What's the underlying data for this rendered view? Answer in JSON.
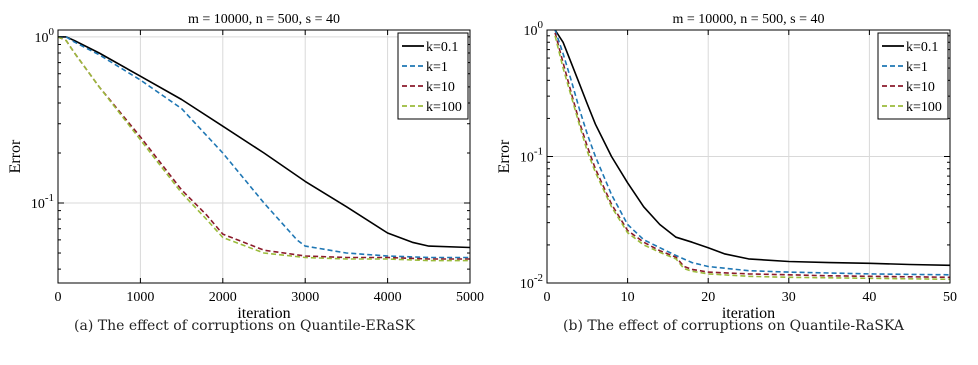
{
  "chart_data": [
    {
      "type": "line",
      "title": "m = 10000, n = 500, s = 40",
      "xlabel": "iteration",
      "ylabel": "Error",
      "xlim": [
        0,
        5000
      ],
      "ylim": [
        0.033,
        1.1
      ],
      "yscale": "log",
      "xticks": [
        0,
        1000,
        2000,
        3000,
        4000,
        5000
      ],
      "ytick_labels": [
        "10^0",
        "10^-1"
      ],
      "grid": true,
      "legend_position": "top-right",
      "caption": "(a) The effect of corruptions on Quantile-ERaSK",
      "series": [
        {
          "name": "k=0.1",
          "color": "#000000",
          "dash": "solid",
          "x": [
            0,
            100,
            200,
            500,
            1000,
            1500,
            2000,
            2500,
            3000,
            3500,
            4000,
            4300,
            4500,
            5000
          ],
          "y": [
            1.0,
            1.0,
            0.95,
            0.8,
            0.58,
            0.42,
            0.29,
            0.2,
            0.135,
            0.095,
            0.066,
            0.058,
            0.055,
            0.054
          ]
        },
        {
          "name": "k=1",
          "color": "#1f77b4",
          "dash": "dashed",
          "x": [
            0,
            100,
            200,
            500,
            1000,
            1500,
            2000,
            2500,
            2900,
            3000,
            3500,
            4000,
            4500,
            5000
          ],
          "y": [
            1.0,
            1.0,
            0.93,
            0.78,
            0.55,
            0.37,
            0.2,
            0.1,
            0.06,
            0.055,
            0.05,
            0.048,
            0.047,
            0.047
          ]
        },
        {
          "name": "k=10",
          "color": "#8b1a2b",
          "dash": "dashed",
          "x": [
            0,
            100,
            200,
            500,
            1000,
            1500,
            1800,
            2000,
            2500,
            3000,
            3500,
            4000,
            4500,
            5000
          ],
          "y": [
            1.0,
            0.95,
            0.8,
            0.5,
            0.25,
            0.12,
            0.085,
            0.065,
            0.052,
            0.048,
            0.047,
            0.047,
            0.046,
            0.046
          ]
        },
        {
          "name": "k=100",
          "color": "#9bbb3b",
          "dash": "dashed",
          "x": [
            0,
            100,
            200,
            500,
            1000,
            1500,
            1800,
            2000,
            2500,
            3000,
            3500,
            4000,
            4500,
            5000
          ],
          "y": [
            1.0,
            0.95,
            0.8,
            0.5,
            0.24,
            0.115,
            0.08,
            0.062,
            0.05,
            0.047,
            0.046,
            0.046,
            0.045,
            0.045
          ]
        }
      ]
    },
    {
      "type": "line",
      "title": "m = 10000, n = 500, s = 40",
      "xlabel": "iteration",
      "ylabel": "Error",
      "xlim": [
        0,
        50
      ],
      "ylim": [
        0.01,
        1.0
      ],
      "yscale": "log",
      "xticks": [
        0,
        10,
        20,
        30,
        40,
        50
      ],
      "ytick_labels": [
        "10^0",
        "10^-1",
        "10^-2"
      ],
      "grid": true,
      "legend_position": "top-right",
      "caption": "(b) The effect of corruptions on Quantile-RaSKA",
      "series": [
        {
          "name": "k=0.1",
          "color": "#000000",
          "dash": "solid",
          "x": [
            1,
            2,
            3,
            4,
            5,
            6,
            8,
            10,
            12,
            14,
            16,
            18,
            20,
            22,
            25,
            30,
            35,
            40,
            45,
            50
          ],
          "y": [
            1.0,
            0.8,
            0.55,
            0.38,
            0.26,
            0.18,
            0.1,
            0.062,
            0.04,
            0.029,
            0.023,
            0.021,
            0.019,
            0.017,
            0.0155,
            0.0148,
            0.0145,
            0.0143,
            0.014,
            0.0138
          ]
        },
        {
          "name": "k=1",
          "color": "#1f77b4",
          "dash": "dashed",
          "x": [
            1,
            2,
            3,
            4,
            5,
            6,
            8,
            10,
            12,
            14,
            16,
            18,
            20,
            25,
            30,
            35,
            40,
            45,
            50
          ],
          "y": [
            1.0,
            0.65,
            0.4,
            0.24,
            0.15,
            0.1,
            0.05,
            0.029,
            0.022,
            0.019,
            0.0165,
            0.0145,
            0.0135,
            0.0125,
            0.0122,
            0.012,
            0.0118,
            0.0117,
            0.0116
          ]
        },
        {
          "name": "k=10",
          "color": "#8b1a2b",
          "dash": "dashed",
          "x": [
            1,
            2,
            3,
            4,
            5,
            6,
            8,
            10,
            12,
            14,
            16,
            17,
            18,
            20,
            25,
            30,
            35,
            40,
            45,
            50
          ],
          "y": [
            0.95,
            0.55,
            0.32,
            0.19,
            0.12,
            0.08,
            0.042,
            0.026,
            0.021,
            0.018,
            0.016,
            0.0135,
            0.0128,
            0.0122,
            0.0118,
            0.0116,
            0.0114,
            0.0113,
            0.0112,
            0.0111
          ]
        },
        {
          "name": "k=100",
          "color": "#9bbb3b",
          "dash": "dashed",
          "x": [
            1,
            2,
            3,
            4,
            5,
            6,
            8,
            10,
            12,
            14,
            16,
            17,
            18,
            20,
            25,
            30,
            35,
            40,
            45,
            50
          ],
          "y": [
            0.9,
            0.5,
            0.3,
            0.18,
            0.11,
            0.075,
            0.04,
            0.025,
            0.02,
            0.0175,
            0.0155,
            0.013,
            0.0124,
            0.0118,
            0.0113,
            0.0111,
            0.011,
            0.0109,
            0.0108,
            0.0107
          ]
        }
      ]
    }
  ]
}
